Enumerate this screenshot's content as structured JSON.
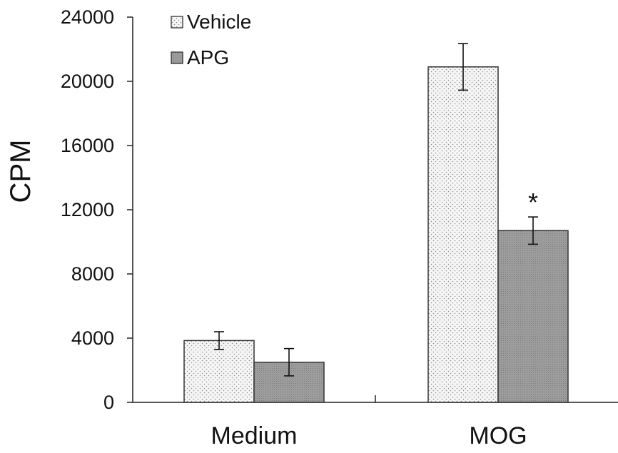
{
  "chart_data": {
    "type": "bar",
    "categories": [
      "Medium",
      "MOG"
    ],
    "series": [
      {
        "name": "Vehicle",
        "values": [
          3850,
          20900
        ],
        "errors": [
          550,
          1450
        ],
        "color": "#f4f4f4",
        "pattern": "dotted"
      },
      {
        "name": "APG",
        "values": [
          2500,
          10700
        ],
        "errors": [
          850,
          850
        ],
        "color": "#9a9a9a",
        "pattern": "dark-gray"
      }
    ],
    "ylabel": "CPM",
    "xlabel": "",
    "ylim": [
      0,
      24000
    ],
    "yticks": [
      0,
      4000,
      8000,
      12000,
      16000,
      20000,
      24000
    ],
    "grid": false,
    "legend": "top-left",
    "annotations": [
      {
        "text": "*",
        "category": "MOG",
        "series": "APG"
      }
    ]
  }
}
